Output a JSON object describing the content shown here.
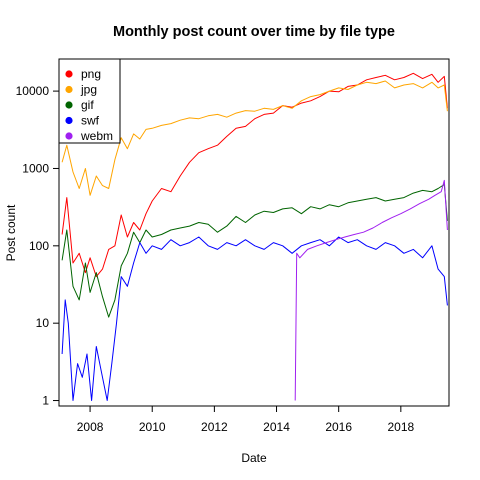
{
  "chart_data": {
    "type": "line",
    "title": "Monthly post count over time by file type",
    "xlabel": "Date",
    "ylabel": "Post count",
    "yscale": "log",
    "xlim": [
      2007.0,
      2019.55
    ],
    "ylim": [
      0.85,
      26000
    ],
    "x_ticks": [
      2008,
      2010,
      2012,
      2014,
      2016,
      2018
    ],
    "x_tick_labels": [
      "2008",
      "2010",
      "2012",
      "2014",
      "2016",
      "2018"
    ],
    "y_ticks": [
      1,
      10,
      100,
      1000,
      10000
    ],
    "y_tick_labels": [
      "1",
      "10",
      "100",
      "1000",
      "10000"
    ],
    "grid": false,
    "legend_position": "top-left",
    "series": [
      {
        "name": "png",
        "color": "#ff0000",
        "x": [
          2007.1,
          2007.25,
          2007.45,
          2007.65,
          2007.85,
          2008.0,
          2008.2,
          2008.4,
          2008.6,
          2008.8,
          2009.0,
          2009.2,
          2009.4,
          2009.6,
          2009.8,
          2010.0,
          2010.3,
          2010.6,
          2010.9,
          2011.2,
          2011.5,
          2011.8,
          2012.1,
          2012.4,
          2012.7,
          2013.0,
          2013.3,
          2013.6,
          2013.9,
          2014.2,
          2014.5,
          2014.8,
          2015.1,
          2015.4,
          2015.7,
          2016.0,
          2016.3,
          2016.6,
          2016.9,
          2017.2,
          2017.5,
          2017.8,
          2018.1,
          2018.4,
          2018.7,
          2019.0,
          2019.2,
          2019.4,
          2019.5
        ],
        "y": [
          140,
          420,
          60,
          80,
          45,
          70,
          40,
          50,
          90,
          100,
          250,
          130,
          200,
          160,
          260,
          380,
          550,
          500,
          800,
          1200,
          1600,
          1800,
          2000,
          2600,
          3300,
          3500,
          4400,
          5000,
          5200,
          6500,
          6200,
          7000,
          7500,
          8500,
          10000,
          9800,
          11500,
          12000,
          14000,
          15000,
          16000,
          14000,
          15000,
          17000,
          14500,
          16500,
          13000,
          15500,
          6000
        ]
      },
      {
        "name": "jpg",
        "color": "#ffa500",
        "x": [
          2007.1,
          2007.25,
          2007.45,
          2007.65,
          2007.85,
          2008.0,
          2008.2,
          2008.4,
          2008.6,
          2008.8,
          2009.0,
          2009.2,
          2009.4,
          2009.6,
          2009.8,
          2010.0,
          2010.3,
          2010.6,
          2010.9,
          2011.2,
          2011.5,
          2011.8,
          2012.1,
          2012.4,
          2012.7,
          2013.0,
          2013.3,
          2013.6,
          2013.9,
          2014.2,
          2014.5,
          2014.8,
          2015.1,
          2015.4,
          2015.7,
          2016.0,
          2016.3,
          2016.6,
          2016.9,
          2017.2,
          2017.5,
          2017.8,
          2018.1,
          2018.4,
          2018.7,
          2019.0,
          2019.2,
          2019.4,
          2019.5
        ],
        "y": [
          1200,
          2000,
          900,
          550,
          1000,
          450,
          800,
          600,
          550,
          1300,
          2500,
          1800,
          2800,
          2400,
          3200,
          3300,
          3600,
          3800,
          4200,
          4500,
          4400,
          4800,
          5000,
          4600,
          5200,
          5600,
          5500,
          6000,
          5800,
          6500,
          6000,
          7500,
          8500,
          9000,
          10000,
          11000,
          10500,
          12000,
          13000,
          12500,
          13500,
          11000,
          12000,
          12500,
          11000,
          13000,
          11000,
          12000,
          5500
        ]
      },
      {
        "name": "gif",
        "color": "#006400",
        "x": [
          2007.1,
          2007.25,
          2007.45,
          2007.65,
          2007.85,
          2008.0,
          2008.2,
          2008.4,
          2008.6,
          2008.8,
          2009.0,
          2009.2,
          2009.4,
          2009.6,
          2009.8,
          2010.0,
          2010.3,
          2010.6,
          2010.9,
          2011.2,
          2011.5,
          2011.8,
          2012.1,
          2012.4,
          2012.7,
          2013.0,
          2013.3,
          2013.6,
          2013.9,
          2014.2,
          2014.5,
          2014.8,
          2015.1,
          2015.4,
          2015.7,
          2016.0,
          2016.3,
          2016.6,
          2016.9,
          2017.2,
          2017.5,
          2017.8,
          2018.1,
          2018.4,
          2018.7,
          2019.0,
          2019.2,
          2019.4,
          2019.5
        ],
        "y": [
          65,
          160,
          30,
          20,
          60,
          25,
          45,
          22,
          12,
          20,
          55,
          80,
          150,
          110,
          160,
          130,
          140,
          160,
          170,
          180,
          200,
          190,
          150,
          180,
          240,
          200,
          250,
          280,
          270,
          300,
          310,
          260,
          320,
          300,
          340,
          320,
          360,
          380,
          400,
          420,
          380,
          400,
          420,
          480,
          520,
          500,
          550,
          620,
          210
        ]
      },
      {
        "name": "swf",
        "color": "#0000ff",
        "x": [
          2007.1,
          2007.2,
          2007.3,
          2007.45,
          2007.6,
          2007.75,
          2007.9,
          2008.05,
          2008.2,
          2008.4,
          2008.55,
          2008.7,
          2008.85,
          2009.0,
          2009.2,
          2009.4,
          2009.6,
          2009.8,
          2010.0,
          2010.3,
          2010.6,
          2010.9,
          2011.2,
          2011.5,
          2011.8,
          2012.1,
          2012.4,
          2012.7,
          2013.0,
          2013.3,
          2013.6,
          2013.9,
          2014.2,
          2014.5,
          2014.8,
          2015.1,
          2015.4,
          2015.7,
          2016.0,
          2016.3,
          2016.6,
          2016.9,
          2017.2,
          2017.5,
          2017.8,
          2018.1,
          2018.4,
          2018.7,
          2019.0,
          2019.2,
          2019.4,
          2019.5
        ],
        "y": [
          4,
          20,
          10,
          1,
          3,
          2,
          4,
          1,
          5,
          2,
          1,
          3,
          10,
          40,
          30,
          60,
          110,
          80,
          100,
          90,
          120,
          100,
          110,
          130,
          100,
          90,
          110,
          100,
          120,
          100,
          90,
          110,
          100,
          80,
          100,
          110,
          120,
          100,
          130,
          110,
          120,
          100,
          90,
          110,
          100,
          80,
          90,
          70,
          100,
          50,
          40,
          17
        ]
      },
      {
        "name": "webm",
        "color": "#a020f0",
        "x": [
          2014.6,
          2014.65,
          2014.75,
          2015.0,
          2015.3,
          2015.6,
          2015.9,
          2016.2,
          2016.5,
          2016.8,
          2017.1,
          2017.4,
          2017.7,
          2018.0,
          2018.3,
          2018.6,
          2018.9,
          2019.1,
          2019.3,
          2019.4,
          2019.5
        ],
        "y": [
          1,
          80,
          70,
          90,
          100,
          110,
          120,
          130,
          140,
          150,
          170,
          200,
          230,
          260,
          300,
          350,
          400,
          450,
          500,
          700,
          160
        ]
      }
    ]
  }
}
